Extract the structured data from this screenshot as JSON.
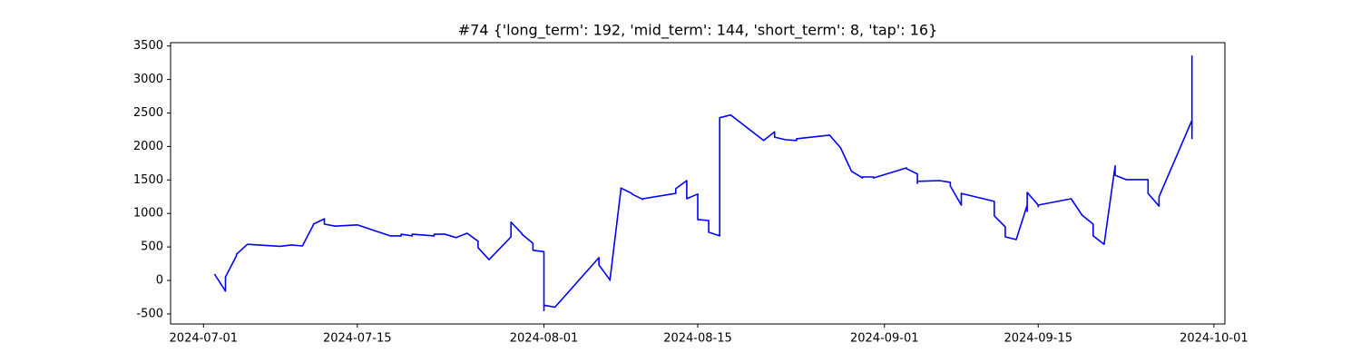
{
  "chart_data": {
    "type": "line",
    "title": "#74 {'long_term': 192, 'mid_term': 144, 'short_term': 8, 'tap': 16}",
    "x": [
      "2024-07-02",
      "2024-07-03",
      "2024-07-03",
      "2024-07-04",
      "2024-07-04",
      "2024-07-05",
      "2024-07-08",
      "2024-07-09",
      "2024-07-10",
      "2024-07-11",
      "2024-07-11",
      "2024-07-12",
      "2024-07-12",
      "2024-07-13",
      "2024-07-15",
      "2024-07-17",
      "2024-07-18",
      "2024-07-19",
      "2024-07-19",
      "2024-07-20",
      "2024-07-20",
      "2024-07-22",
      "2024-07-22",
      "2024-07-23",
      "2024-07-24",
      "2024-07-25",
      "2024-07-26",
      "2024-07-26",
      "2024-07-27",
      "2024-07-29",
      "2024-07-29",
      "2024-07-30",
      "2024-07-30",
      "2024-07-31",
      "2024-07-31",
      "2024-08-01",
      "2024-08-01",
      "2024-08-01",
      "2024-08-02",
      "2024-08-06",
      "2024-08-06",
      "2024-08-07",
      "2024-08-07",
      "2024-08-08",
      "2024-08-08",
      "2024-08-09",
      "2024-08-09",
      "2024-08-10",
      "2024-08-10",
      "2024-08-13",
      "2024-08-13",
      "2024-08-14",
      "2024-08-14",
      "2024-08-15",
      "2024-08-15",
      "2024-08-15",
      "2024-08-16",
      "2024-08-16",
      "2024-08-16",
      "2024-08-17",
      "2024-08-17",
      "2024-08-17",
      "2024-08-18",
      "2024-08-21",
      "2024-08-22",
      "2024-08-22",
      "2024-08-23",
      "2024-08-24",
      "2024-08-24",
      "2024-08-27",
      "2024-08-28",
      "2024-08-29",
      "2024-08-29",
      "2024-08-30",
      "2024-08-30",
      "2024-08-31",
      "2024-08-31",
      "2024-09-03",
      "2024-09-03",
      "2024-09-04",
      "2024-09-04",
      "2024-09-04",
      "2024-09-06",
      "2024-09-07",
      "2024-09-07",
      "2024-09-08",
      "2024-09-08",
      "2024-09-11",
      "2024-09-11",
      "2024-09-11",
      "2024-09-12",
      "2024-09-12",
      "2024-09-13",
      "2024-09-14",
      "2024-09-14",
      "2024-09-14",
      "2024-09-15",
      "2024-09-15",
      "2024-09-15",
      "2024-09-18",
      "2024-09-19",
      "2024-09-20",
      "2024-09-20",
      "2024-09-20",
      "2024-09-21",
      "2024-09-22",
      "2024-09-22",
      "2024-09-23",
      "2024-09-25",
      "2024-09-25",
      "2024-09-25",
      "2024-09-26",
      "2024-09-26",
      "2024-09-26",
      "2024-09-29",
      "2024-09-29",
      "2024-09-29",
      "2024-09-29"
    ],
    "series": [
      {
        "color": "#0000ff",
        "values": [
          95,
          -160,
          50,
          370,
          390,
          540,
          510,
          530,
          515,
          830,
          840,
          920,
          840,
          810,
          830,
          720,
          665,
          665,
          690,
          665,
          690,
          665,
          690,
          690,
          640,
          705,
          585,
          490,
          310,
          650,
          870,
          700,
          690,
          555,
          450,
          430,
          -450,
          -370,
          -400,
          340,
          230,
          10,
          0,
          1355,
          1380,
          1300,
          1290,
          1210,
          1220,
          1300,
          1370,
          1490,
          1220,
          1290,
          990,
          910,
          895,
          760,
          720,
          665,
          1735,
          2430,
          2470,
          2090,
          2220,
          2140,
          2100,
          2090,
          2115,
          2170,
          1980,
          1630,
          1630,
          1530,
          1545,
          1545,
          1530,
          1680,
          1670,
          1590,
          1450,
          1480,
          1490,
          1465,
          1410,
          1125,
          1300,
          1180,
          990,
          965,
          800,
          650,
          610,
          1125,
          1030,
          1315,
          1125,
          1100,
          1125,
          1220,
          975,
          840,
          690,
          665,
          540,
          1710,
          1570,
          1505,
          1505,
          1300,
          1300,
          1110,
          1220,
          1250,
          2390,
          3350,
          3350,
          2110
        ]
      }
    ],
    "xlim": [
      "2024-06-28",
      "2024-10-02"
    ],
    "xticks": [
      "2024-07-01",
      "2024-07-15",
      "2024-08-01",
      "2024-08-15",
      "2024-09-01",
      "2024-09-15",
      "2024-10-01"
    ],
    "ylim": [
      -650,
      3550
    ],
    "yticks": [
      -500,
      0,
      500,
      1000,
      1500,
      2000,
      2500,
      3000,
      3500
    ]
  }
}
